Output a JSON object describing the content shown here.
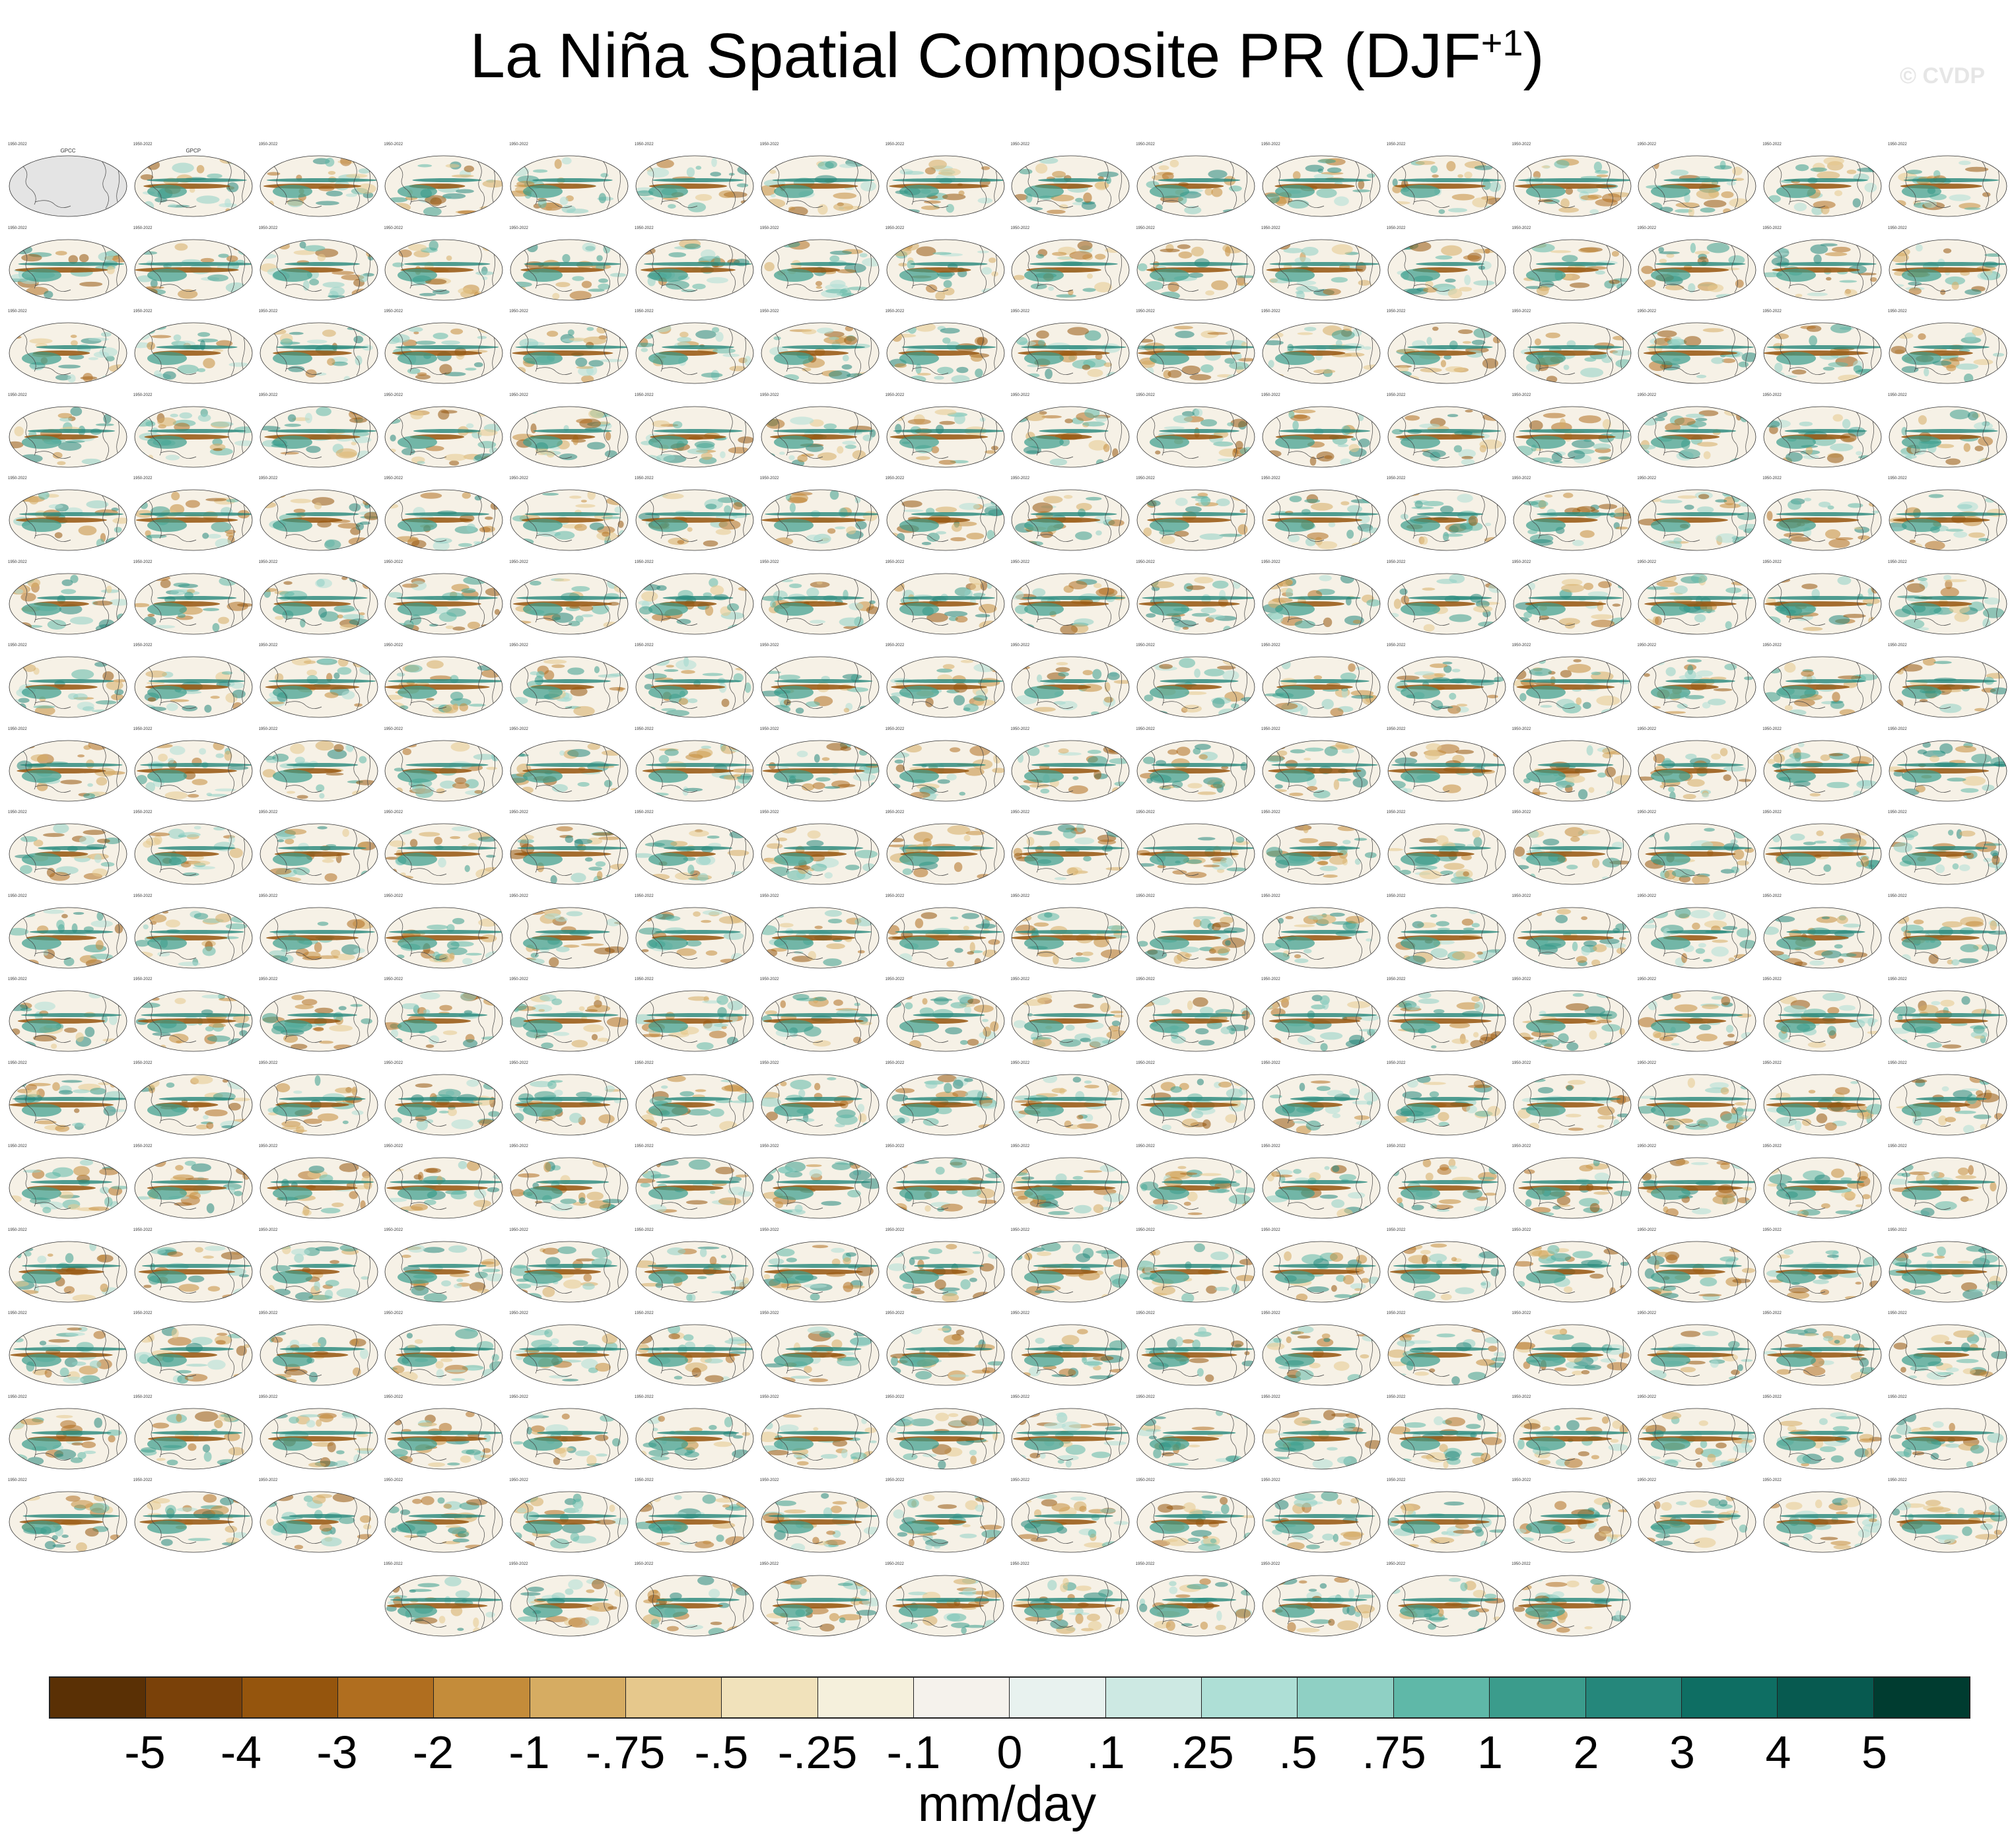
{
  "figure": {
    "title": "La Niña Spatial Composite PR (DJF",
    "title_superscript": "+1",
    "title_suffix": ")",
    "watermark": "© CVDP",
    "units_label": "mm/day"
  },
  "colorbar": {
    "colors": [
      "#5a3005",
      "#7a4109",
      "#95550d",
      "#b06e1f",
      "#c48c3a",
      "#d6ac62",
      "#e6c88c",
      "#f1e2bb",
      "#f5f0dc",
      "#f5f2ec",
      "#e8f2ef",
      "#cde9e3",
      "#aedfd6",
      "#8fd0c4",
      "#5fb8a8",
      "#3b9c8c",
      "#25877b",
      "#0e6e63",
      "#075a50",
      "#003c30"
    ],
    "tick_labels": [
      "-5",
      "-4",
      "-3",
      "-2",
      "-1",
      "-.75",
      "-.5",
      "-.25",
      "-.1",
      "0",
      ".1",
      ".25",
      ".5",
      ".75",
      "1",
      "2",
      "3",
      "4",
      "5"
    ]
  },
  "panel_groups": [
    {
      "name": "observations",
      "count": 2,
      "label_color": "#333333",
      "labels": [
        "GPCC",
        "GPCP"
      ],
      "first_panel_no_data": true
    },
    {
      "name": "ACCESS-ESM1-5 ensemble",
      "count": 48,
      "label_color": "#2a8fb0"
    },
    {
      "name": "CanESM5 ensemble",
      "count": 50,
      "label_color": "#8fb8b0"
    },
    {
      "name": "unlabeled ensemble",
      "count": 16,
      "label_color": "#e0c8c8"
    },
    {
      "name": "CESM1 ensemble",
      "count": 40,
      "label_color": "#c85a3a"
    },
    {
      "name": "CESM2 ensemble",
      "count": 100,
      "label_color": "#8c78c8"
    },
    {
      "name": "unlabeled ensemble",
      "count": 26,
      "label_color": "#e0d4b8"
    }
  ],
  "panel_text": {
    "years": "1950-2022"
  }
}
